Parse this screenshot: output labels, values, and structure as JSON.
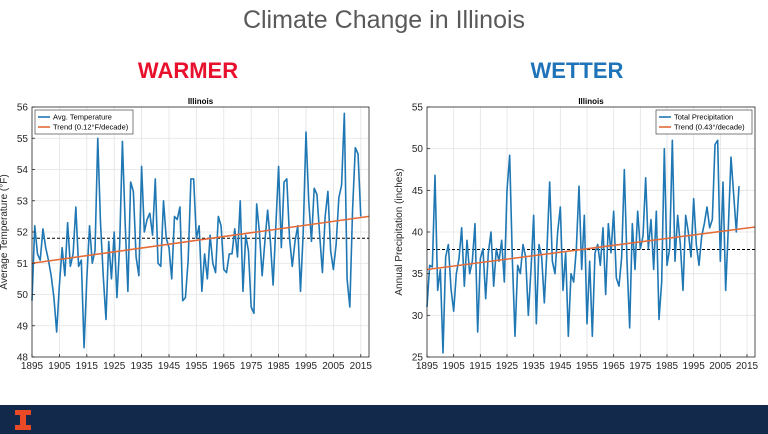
{
  "slide": {
    "title": "Climate Change in Illinois"
  },
  "headings": {
    "left": {
      "text": "WARMER",
      "color": "#e8112d"
    },
    "right": {
      "text": "WETTER",
      "color": "#1f74b9"
    }
  },
  "footer": {
    "bar_color": "#13294b",
    "logo_color": "#e84a27",
    "logo_name": "illinois-block-i-logo"
  },
  "chart_data": [
    {
      "type": "line",
      "title": "Illinois",
      "xlabel": "",
      "ylabel": "Average Temperature (°F)",
      "xlim": [
        1895,
        2018
      ],
      "ylim": [
        48,
        56
      ],
      "xticks": [
        "1895",
        "1905",
        "1915",
        "1925",
        "1935",
        "1945",
        "1955",
        "1965",
        "1975",
        "1985",
        "1995",
        "2005",
        "2015"
      ],
      "yticks": [
        "48",
        "49",
        "50",
        "51",
        "52",
        "53",
        "54",
        "55",
        "56"
      ],
      "grid": true,
      "legend": "top-left",
      "x_start": 1895,
      "series": [
        {
          "name": "Avg. Temperature",
          "color": "#1f77b4",
          "style": "data",
          "values": [
            49.8,
            52.2,
            51.3,
            51.1,
            52.1,
            51.5,
            51.1,
            50.6,
            49.9,
            48.8,
            50.3,
            51.5,
            50.6,
            52.3,
            50.9,
            51.3,
            52.8,
            50.9,
            51.1,
            48.3,
            50.5,
            52.2,
            51.0,
            51.4,
            55.0,
            52.3,
            50.6,
            49.2,
            51.7,
            50.5,
            52.0,
            49.9,
            51.6,
            54.9,
            52.3,
            50.1,
            53.6,
            53.3,
            51.2,
            50.6,
            54.1,
            52.0,
            52.4,
            52.6,
            51.9,
            53.7,
            51.0,
            50.9,
            53.0,
            51.8,
            51.5,
            50.5,
            52.5,
            52.4,
            52.8,
            49.8,
            49.9,
            51.1,
            53.7,
            53.7,
            51.8,
            52.2,
            50.1,
            51.3,
            50.5,
            51.9,
            51.0,
            50.7,
            52.5,
            52.2,
            50.8,
            50.7,
            51.3,
            51.3,
            52.1,
            51.2,
            53.0,
            50.1,
            51.9,
            51.4,
            49.6,
            49.4,
            52.9,
            52.0,
            50.6,
            51.7,
            52.7,
            51.7,
            50.3,
            52.2,
            54.1,
            51.5,
            53.6,
            53.7,
            51.8,
            50.9,
            51.7,
            52.2,
            50.1,
            52.0,
            55.2,
            53.0,
            51.7,
            53.4,
            53.2,
            51.9,
            50.7,
            52.5,
            53.3,
            51.4,
            50.8,
            51.6,
            53.1,
            53.5,
            55.8,
            50.5,
            49.6,
            52.7,
            54.7,
            54.5,
            52.5
          ]
        },
        {
          "name": "Trend (0.12°F/decade)",
          "color": "#e36a39",
          "style": "trend",
          "values_at_ends": [
            51.0,
            52.5
          ]
        }
      ],
      "reference_line": 51.8
    },
    {
      "type": "line",
      "title": "Illinois",
      "xlabel": "",
      "ylabel": "Annual Precipitation (inches)",
      "xlim": [
        1895,
        2018
      ],
      "ylim": [
        25,
        55
      ],
      "xticks": [
        "1895",
        "1905",
        "1915",
        "1925",
        "1935",
        "1945",
        "1955",
        "1965",
        "1975",
        "1985",
        "1995",
        "2005",
        "2015"
      ],
      "yticks": [
        "25",
        "30",
        "35",
        "40",
        "45",
        "50",
        "55"
      ],
      "grid": true,
      "legend": "top-right",
      "x_start": 1895,
      "series": [
        {
          "name": "Total Precipitation",
          "color": "#1f77b4",
          "style": "data",
          "values": [
            31.0,
            36.0,
            35.8,
            46.8,
            33.0,
            35.5,
            25.5,
            37.0,
            38.5,
            33.2,
            30.5,
            35.0,
            36.8,
            40.5,
            33.5,
            39.0,
            35.0,
            36.5,
            41.0,
            28.0,
            36.8,
            38.0,
            32.0,
            37.5,
            40.0,
            33.5,
            38.0,
            36.5,
            39.0,
            34.0,
            45.0,
            49.2,
            36.8,
            27.5,
            36.0,
            35.0,
            38.5,
            37.0,
            30.0,
            35.5,
            42.0,
            29.0,
            38.5,
            37.0,
            31.5,
            38.0,
            46.0,
            36.5,
            35.0,
            40.0,
            43.0,
            33.0,
            37.5,
            27.5,
            35.0,
            34.0,
            38.0,
            45.5,
            35.5,
            42.0,
            29.0,
            36.5,
            27.5,
            37.5,
            38.5,
            36.0,
            40.5,
            32.5,
            41.0,
            37.5,
            42.5,
            34.5,
            33.5,
            37.0,
            47.5,
            36.5,
            28.5,
            41.0,
            35.5,
            42.5,
            38.0,
            39.5,
            46.5,
            38.0,
            41.5,
            35.5,
            42.5,
            29.5,
            34.0,
            50.0,
            36.0,
            38.0,
            51.0,
            36.5,
            42.0,
            38.5,
            33.0,
            42.0,
            40.0,
            37.0,
            44.0,
            38.5,
            36.0,
            39.5,
            41.0,
            43.0,
            40.5,
            41.5,
            50.5,
            51.0,
            36.5,
            46.0,
            33.0,
            40.5,
            49.0,
            44.5,
            40.0,
            45.5
          ]
        },
        {
          "name": "Trend (0.43°/decade)",
          "color": "#e36a39",
          "style": "trend",
          "values_at_ends": [
            35.5,
            40.6
          ]
        }
      ],
      "reference_line": 37.9
    }
  ]
}
